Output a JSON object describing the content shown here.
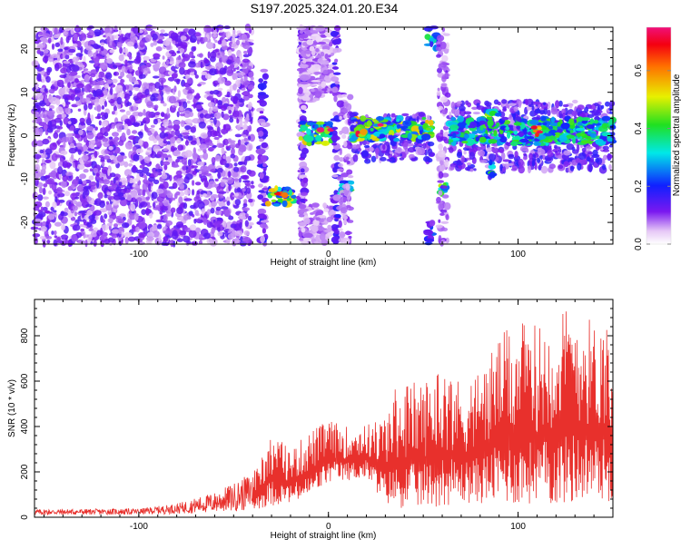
{
  "title": "S197.2025.324.01.20.E34",
  "chart_data": [
    {
      "type": "heatmap",
      "name": "spectrogram",
      "xlabel": "Height of straight line (km)",
      "ylabel": "Frequency (Hz)",
      "xlim": [
        -155,
        150
      ],
      "ylim": [
        -25,
        25
      ],
      "xticks": [
        -100,
        0,
        100
      ],
      "yticks": [
        -20,
        -10,
        0,
        10,
        20
      ],
      "colorbar": {
        "label": "Normalized spectral amplitude",
        "range": [
          0.0,
          0.75
        ],
        "ticks": [
          "0.0",
          "0.2",
          "0.4",
          "0.6"
        ],
        "tick_values": [
          0.0,
          0.2,
          0.4,
          0.6
        ]
      },
      "features": [
        {
          "x0": -155,
          "x1": -40,
          "f0": -25,
          "f1": 25,
          "kind": "noise",
          "amp": 0.12
        },
        {
          "x0": -36,
          "x1": -33,
          "f0": -25,
          "f1": 15,
          "kind": "band",
          "amp": 0.15
        },
        {
          "x0": -33,
          "x1": -18,
          "f0": -16,
          "f1": -12,
          "kind": "band",
          "amp": 0.45
        },
        {
          "x0": -27,
          "x1": -20,
          "f0": -15,
          "f1": -13,
          "kind": "band",
          "amp": 0.72
        },
        {
          "x0": -15,
          "x1": -13,
          "f0": -25,
          "f1": 25,
          "kind": "band",
          "amp": 0.12
        },
        {
          "x0": -14,
          "x1": -12,
          "f0": -25,
          "f1": 25,
          "kind": "band",
          "amp": 0.12
        },
        {
          "x0": -15,
          "x1": 2,
          "f0": -25,
          "f1": -16,
          "kind": "band",
          "amp": 0.08
        },
        {
          "x0": -15,
          "x1": 2,
          "f0": 8,
          "f1": 25,
          "kind": "band",
          "amp": 0.08
        },
        {
          "x0": -15,
          "x1": 2,
          "f0": -2,
          "f1": 3,
          "kind": "band",
          "amp": 0.45
        },
        {
          "x0": -5,
          "x1": 2,
          "f0": 1,
          "f1": 2,
          "kind": "band",
          "amp": 0.72
        },
        {
          "x0": 3,
          "x1": 5,
          "f0": -25,
          "f1": 25,
          "kind": "band",
          "amp": 0.15
        },
        {
          "x0": 6,
          "x1": 12,
          "f0": -14,
          "f1": -10,
          "kind": "band",
          "amp": 0.4
        },
        {
          "x0": 6,
          "x1": 12,
          "f0": -25,
          "f1": 10,
          "kind": "noise",
          "amp": 0.1
        },
        {
          "x0": 12,
          "x1": 55,
          "f0": -6,
          "f1": 5,
          "kind": "noise",
          "amp": 0.15
        },
        {
          "x0": 12,
          "x1": 55,
          "f0": -1,
          "f1": 4,
          "kind": "band",
          "amp": 0.45
        },
        {
          "x0": 15,
          "x1": 20,
          "f0": 0,
          "f1": 1,
          "kind": "band",
          "amp": 0.7
        },
        {
          "x0": 25,
          "x1": 30,
          "f0": 2,
          "f1": 3,
          "kind": "band",
          "amp": 0.72
        },
        {
          "x0": 52,
          "x1": 57,
          "f0": 20,
          "f1": 25,
          "kind": "band",
          "amp": 0.35
        },
        {
          "x0": 52,
          "x1": 55,
          "f0": -25,
          "f1": -20,
          "kind": "band",
          "amp": 0.2
        },
        {
          "x0": 59,
          "x1": 63,
          "f0": -14,
          "f1": -11,
          "kind": "band",
          "amp": 0.4
        },
        {
          "x0": 58,
          "x1": 63,
          "f0": -25,
          "f1": 25,
          "kind": "noise",
          "amp": 0.1
        },
        {
          "x0": 64,
          "x1": 150,
          "f0": -8,
          "f1": 8,
          "kind": "noise",
          "amp": 0.15
        },
        {
          "x0": 64,
          "x1": 150,
          "f0": -2,
          "f1": 4,
          "kind": "band",
          "amp": 0.35
        },
        {
          "x0": 83,
          "x1": 90,
          "f0": 4,
          "f1": 6,
          "kind": "band",
          "amp": 0.55
        },
        {
          "x0": 108,
          "x1": 112,
          "f0": 0,
          "f1": 2,
          "kind": "band",
          "amp": 0.6
        },
        {
          "x0": 85,
          "x1": 88,
          "f0": -10,
          "f1": -6,
          "kind": "band",
          "amp": 0.35
        }
      ]
    },
    {
      "type": "line",
      "name": "snr",
      "xlabel": "Height of straight line (km)",
      "ylabel": "SNR (10 * v/v)",
      "xlim": [
        -155,
        150
      ],
      "ylim": [
        0,
        960
      ],
      "xticks": [
        -100,
        0,
        100
      ],
      "yticks": [
        0,
        200,
        400,
        600,
        800
      ],
      "series_color": "#e8302c",
      "envelope": {
        "x": [
          -155,
          -100,
          -80,
          -60,
          -50,
          -40,
          -35,
          -30,
          -20,
          -10,
          0,
          10,
          20,
          30,
          35,
          40,
          50,
          60,
          70,
          80,
          90,
          100,
          110,
          120,
          130,
          140,
          150
        ],
        "high": [
          35,
          38,
          60,
          110,
          150,
          200,
          280,
          380,
          300,
          380,
          430,
          400,
          410,
          450,
          570,
          600,
          600,
          680,
          600,
          650,
          800,
          860,
          850,
          900,
          960,
          860,
          900
        ],
        "low": [
          10,
          12,
          15,
          20,
          25,
          30,
          40,
          50,
          60,
          80,
          150,
          160,
          170,
          60,
          40,
          40,
          40,
          50,
          60,
          60,
          60,
          50,
          60,
          50,
          60,
          80,
          60
        ]
      }
    }
  ]
}
